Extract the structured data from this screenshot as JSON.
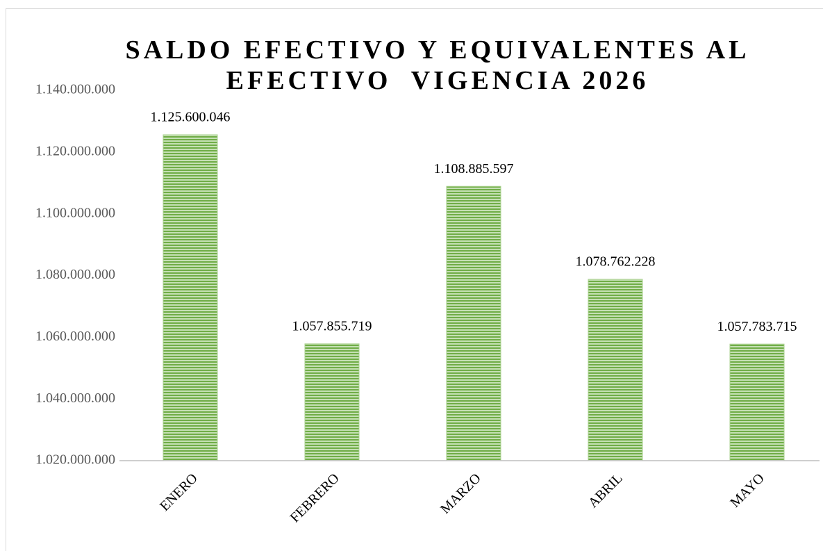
{
  "chart_data": {
    "type": "bar",
    "title": "SALDO EFECTIVO Y EQUIVALENTES AL EFECTIVO  VIGENCIA 2026",
    "categories": [
      "ENERO",
      "FEBRERO",
      "MARZO",
      "ABRIL",
      "MAYO"
    ],
    "values": [
      1125600046,
      1057855719,
      1108885597,
      1078762228,
      1057783715
    ],
    "value_labels": [
      "1.125.600.046",
      "1.057.855.719",
      "1.108.885.597",
      "1.078.762.228",
      "1.057.783.715"
    ],
    "color": "#70ad47",
    "ylim": [
      1020000000,
      1140000000
    ],
    "yticks": [
      {
        "value": 1020000000,
        "label": "1.020.000.000"
      },
      {
        "value": 1040000000,
        "label": "1.040.000.000"
      },
      {
        "value": 1060000000,
        "label": "1.060.000.000"
      },
      {
        "value": 1080000000,
        "label": "1.080.000.000"
      },
      {
        "value": 1100000000,
        "label": "1.100.000.000"
      },
      {
        "value": 1120000000,
        "label": "1.120.000.000"
      },
      {
        "value": 1140000000,
        "label": "1.140.000.000"
      }
    ],
    "grid": false
  }
}
